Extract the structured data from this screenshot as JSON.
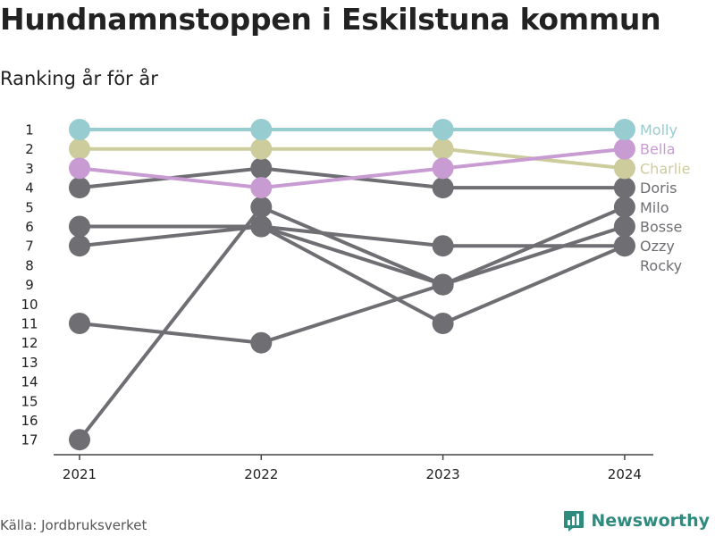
{
  "header": {
    "title": "Hundnamnstoppen i Eskilstuna kommun",
    "subtitle": "Ranking år för år"
  },
  "footer": {
    "source": "Källa: Jordbruksverket",
    "brand": "Newsworthy"
  },
  "colors": {
    "gray": "#6e6e73",
    "molly": "#97cdd0",
    "bella": "#c89bd2",
    "charlie": "#cccc9c",
    "brand": "#2e8b7e"
  },
  "chart_data": {
    "type": "line",
    "title": "Hundnamnstoppen i Eskilstuna kommun",
    "subtitle": "Ranking år för år",
    "x": [
      "2021",
      "2022",
      "2023",
      "2024"
    ],
    "y_ticks": [
      1,
      2,
      3,
      4,
      5,
      6,
      7,
      8,
      9,
      10,
      11,
      12,
      13,
      14,
      15,
      16,
      17
    ],
    "ylim": [
      1,
      17
    ],
    "y_reversed": true,
    "grid": false,
    "series": [
      {
        "name": "Doris",
        "values": [
          4,
          3,
          4,
          4
        ],
        "color": "#6e6e73"
      },
      {
        "name": "Milo",
        "values": [
          17,
          5,
          9,
          5
        ],
        "color": "#6e6e73"
      },
      {
        "name": "Bosse",
        "values": [
          7,
          6,
          9,
          6
        ],
        "color": "#6e6e73"
      },
      {
        "name": "Ozzy",
        "values": [
          6,
          6,
          7,
          7
        ],
        "color": "#6e6e73"
      },
      {
        "name": "Rocky",
        "values": [
          11,
          12,
          9,
          null
        ],
        "color": "#6e6e73"
      },
      {
        "name": "",
        "values": [
          null,
          6,
          11,
          7
        ],
        "color": "#6e6e73"
      },
      {
        "name": "Charlie",
        "values": [
          2,
          2,
          2,
          3
        ],
        "color": "#cccc9c"
      },
      {
        "name": "Bella",
        "values": [
          3,
          4,
          3,
          2
        ],
        "color": "#c89bd2"
      },
      {
        "name": "Molly",
        "values": [
          1,
          1,
          1,
          1
        ],
        "color": "#97cdd0"
      }
    ],
    "end_labels": [
      {
        "text": "Molly",
        "rank": 1,
        "color": "#97cdd0"
      },
      {
        "text": "Bella",
        "rank": 2,
        "color": "#c89bd2"
      },
      {
        "text": "Charlie",
        "rank": 3,
        "color": "#cccc9c"
      },
      {
        "text": "Doris",
        "rank": 4,
        "color": "#6e6e73"
      },
      {
        "text": "Milo",
        "rank": 5,
        "color": "#6e6e73"
      },
      {
        "text": "Bosse",
        "rank": 6,
        "color": "#6e6e73"
      },
      {
        "text": "Ozzy",
        "rank": 7,
        "color": "#6e6e73"
      },
      {
        "text": "Rocky",
        "rank": 8,
        "color": "#6e6e73"
      }
    ]
  }
}
